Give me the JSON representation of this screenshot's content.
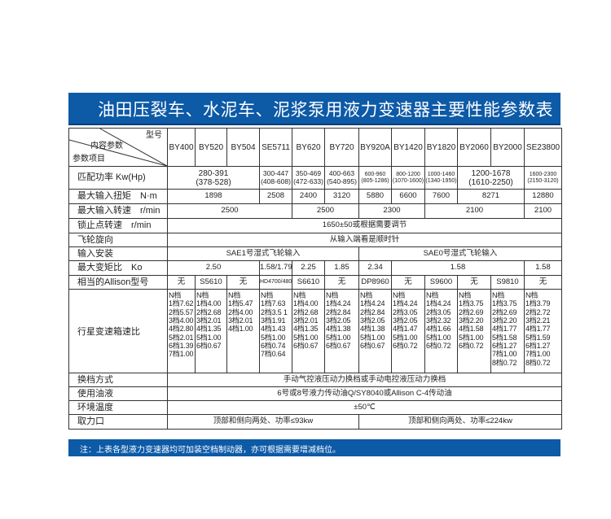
{
  "title": "油田压裂车、水泥车、泥浆泵用液力变速器主要性能参数表",
  "header": {
    "model_label": "型号",
    "content_label": "内容参数",
    "item_label": "参数项目",
    "models": [
      "BY400",
      "BY520",
      "BY504",
      "SE5711",
      "BY620",
      "BY720",
      "BY920A",
      "BY1420",
      "BY1820",
      "BY2060",
      "BY2000",
      "SE23800"
    ]
  },
  "rows": {
    "power": {
      "label": "匹配功率 Kw(Hp)",
      "cells": [
        "280-391\n(378-528)",
        "300-447\n(408-608)",
        "350-469\n(472-633)",
        "400-663\n(540-895)",
        "600-960\n(805-1286)",
        "800-1200\n(1070-1600)",
        "1000-1460\n(1340-1950)",
        "1200-1678\n(1610-2250)",
        "1600-2300\n(2150-3120)"
      ]
    },
    "torque": {
      "label": "最大输入扭矩　N·m",
      "cells": [
        "1898",
        "2508",
        "2400",
        "3120",
        "5880",
        "6600",
        "7600",
        "8271",
        "12880"
      ]
    },
    "speed": {
      "label": "最大输入转速　r/min",
      "cells": [
        "2500",
        "2500",
        "2300",
        "2100",
        "2100"
      ]
    },
    "lockup": {
      "label": "锁止点转速　r/min",
      "value": "1650±50或根据需要调节"
    },
    "flywheel": {
      "label": "飞轮旋向",
      "value": "从输入端看是顺时针"
    },
    "input": {
      "label": "输入安装",
      "cells": [
        "SAE1号湿式飞轮输入",
        "SAE0号湿式飞轮输入"
      ]
    },
    "ratio": {
      "label": "最大变矩比　Ko",
      "cells": [
        "2.50",
        "1.58/1.79",
        "2.25",
        "1.85",
        "2.34",
        "1.58",
        "1.58"
      ]
    },
    "allison": {
      "label": "相当的Allison型号",
      "cells": [
        "无",
        "S5610",
        "无",
        "HD4700/4800",
        "S6610",
        "无",
        "DP8960",
        "无",
        "S9600",
        "无",
        "S9810",
        "无"
      ]
    },
    "gears": {
      "label": "行星变速箱速比",
      "cells": [
        "N档\n1档7.62\n2档5.57\n3档4.00\n4档2.80\n5档2.01\n6档1.39\n7档1.00",
        "N档\n1档4.00\n2档2.68\n3档2.01\n4档1.35\n5档1.00\n6档0.67",
        "N档\n1档5.47\n2档4.00\n3档2.01\n4档1.00",
        "N档\n1档7.63\n2档3.5 1\n3档1.91\n4档1.43\n5档1.00\n6档0.74\n7档0.64",
        "N档\n1档4.00\n2档2.68\n3档2.01\n4档1.35\n5档1.00\n6档0.67",
        "N档\n1档4.24\n2档2.84\n3档2.05\n4档1.38\n5档1.00\n6档0.67",
        "N档\n1档4.24\n2档2.84\n3档2.05\n4档1.38\n5档1.00\n6档0.67",
        "N档\n1档4.24\n2档3.05\n3档2.05\n4档1.47\n5档1.00\n6档0.72",
        "N档\n1档4.24\n2档3.05\n3档2.32\n4档1.66\n5档1.00\n6档0.72",
        "N档\n1档3.75\n2档2.69\n3档2.20\n4档1.58\n5档1.00\n6档0.72",
        "N档\n1档3.75\n2档2.69\n3档2.20\n4档1.77\n5档1.58\n6档1.27\n7档1.00\n8档0.72",
        "N档\n1档3.79\n2档2.72\n3档2.21\n4档1.77\n5档1.59\n6档1.27\n7档1.00\n8档0.72"
      ]
    },
    "shift": {
      "label": "换档方式",
      "value": "手动气控液压动力换档或手动电控液压动力换档"
    },
    "oil": {
      "label": "使用油液",
      "value": "6号或8号液力传动油Q/SY8040或Allison C-4传动油"
    },
    "temp": {
      "label": "环境温度",
      "value": "±50℃"
    },
    "pto": {
      "label": "取力口",
      "cells": [
        "顶部和侧向两处、功率≤93kw",
        "顶部和侧向两处、功率≤224kw"
      ]
    }
  },
  "note": "注：上表各型液力变速器均可加装空档制动器，亦可根据需要增减档位。",
  "colors": {
    "title_bar": "#0d5aa7",
    "border": "#333333"
  }
}
